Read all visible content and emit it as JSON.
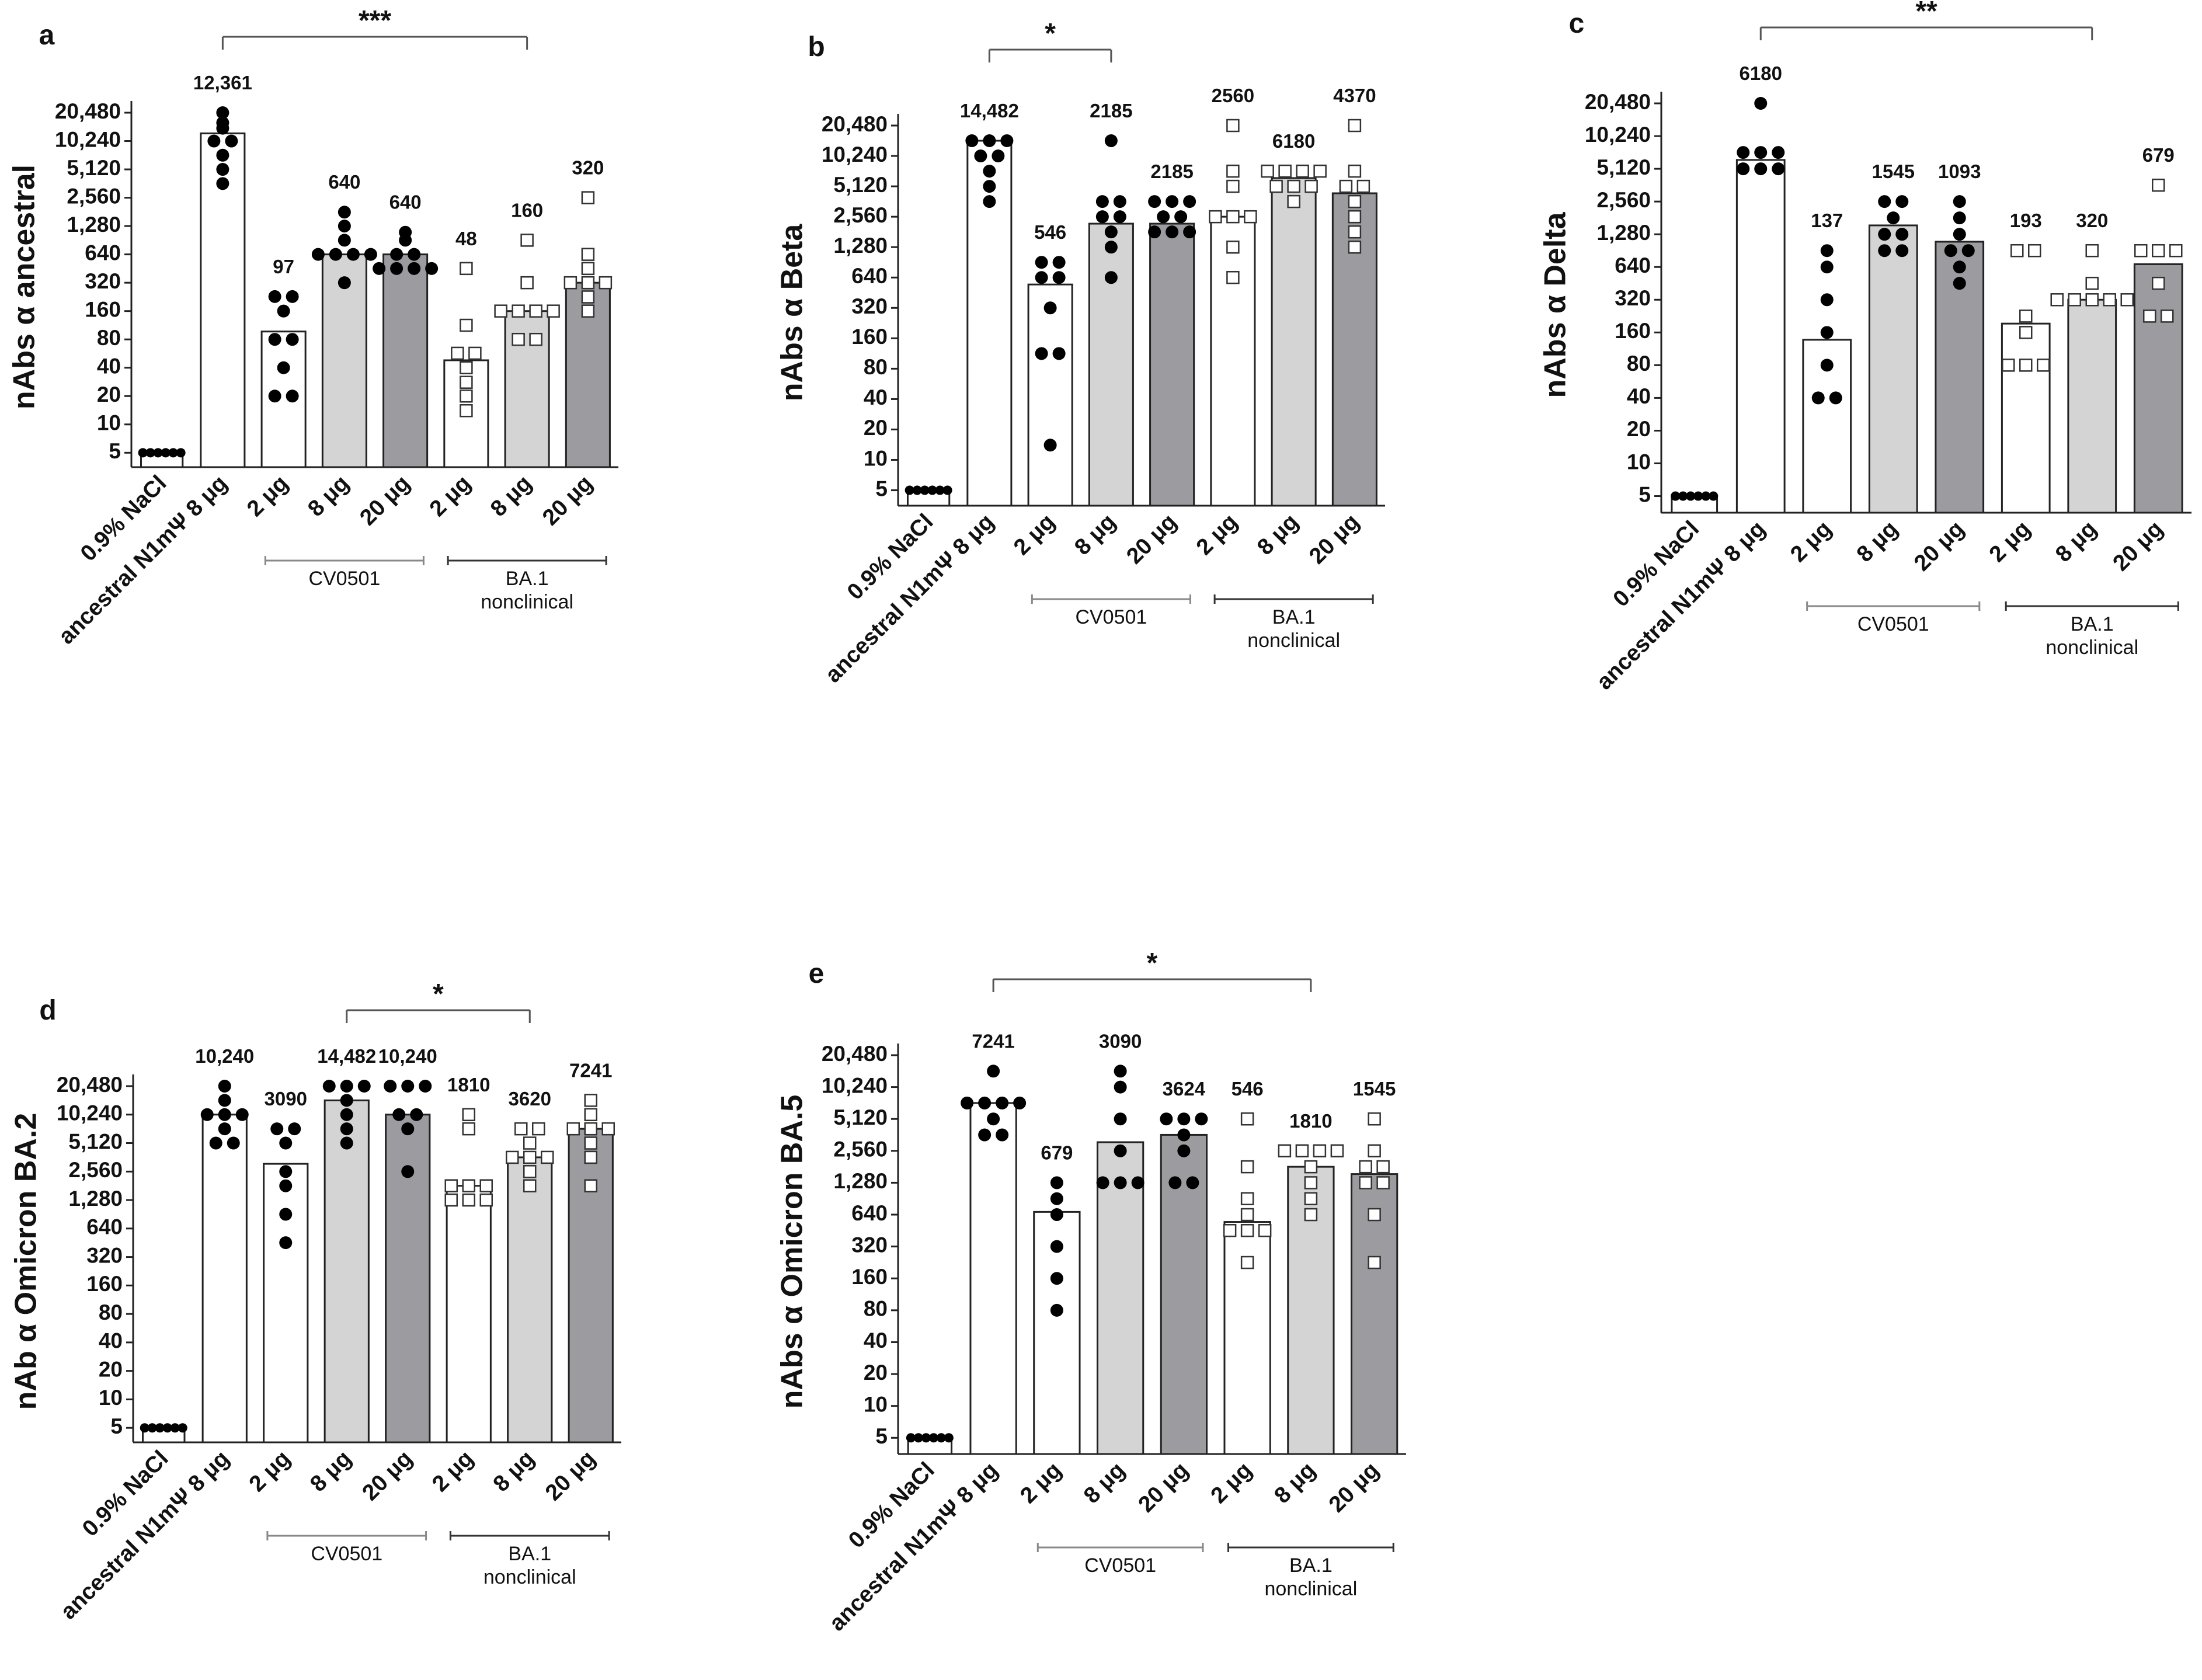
{
  "chart_data": [
    {
      "panel": "a",
      "type": "bar",
      "ylabel": "nAbs α ancestral",
      "yscale": "log2",
      "yticks": [
        "5",
        "10",
        "20",
        "40",
        "80",
        "160",
        "320",
        "640",
        "1,280",
        "2,560",
        "5,120",
        "10,240",
        "20,480"
      ],
      "categories": [
        "0.9% NaCl",
        "ancestral N1mΨ 8 μg",
        "2 μg",
        "8 μg",
        "20 μg",
        "2 μg",
        "8 μg",
        "20 μg"
      ],
      "bar_colors": [
        "#ffffff",
        "#ffffff",
        "#ffffff",
        "#d4d4d4",
        "#9b9ba0",
        "#ffffff",
        "#d4d4d4",
        "#9b9ba0"
      ],
      "values": [
        5,
        12361,
        97,
        640,
        640,
        48,
        160,
        320
      ],
      "value_labels": [
        "",
        "12,361",
        "97",
        "640",
        "640",
        "48",
        "160",
        "320"
      ],
      "group_labels": [
        {
          "text": "CV0501",
          "from": 2,
          "to": 4
        },
        {
          "text": "BA.1\nnonclinical",
          "from": 5,
          "to": 7
        }
      ],
      "significance": [
        {
          "from": 1,
          "to": 6,
          "label": "***"
        }
      ],
      "points": [
        [
          5,
          5,
          5,
          5,
          5,
          5
        ],
        [
          20480,
          16000,
          14000,
          10240,
          10240,
          5120,
          3620,
          7240
        ],
        [
          228,
          228,
          160,
          80,
          80,
          40,
          20,
          20
        ],
        [
          1800,
          1280,
          905,
          640,
          640,
          640,
          640,
          320
        ],
        [
          1100,
          905,
          640,
          640,
          453,
          453,
          453,
          453
        ],
        [
          453,
          113,
          57,
          57,
          40,
          28,
          20,
          14
        ],
        [
          905,
          320,
          160,
          160,
          160,
          160,
          80,
          80
        ],
        [
          2560,
          640,
          453,
          320,
          320,
          320,
          226,
          160
        ]
      ],
      "markers": [
        "circle",
        "circle",
        "circle",
        "circle",
        "circle",
        "square",
        "square",
        "square"
      ]
    },
    {
      "panel": "b",
      "type": "bar",
      "ylabel": "nAbs α Beta",
      "yscale": "log2",
      "yticks": [
        "5",
        "10",
        "20",
        "40",
        "80",
        "160",
        "320",
        "640",
        "1,280",
        "2,560",
        "5,120",
        "10,240",
        "20,480"
      ],
      "categories": [
        "0.9% NaCl",
        "ancestral N1mΨ 8 μg",
        "2 μg",
        "8 μg",
        "20 μg",
        "2 μg",
        "8 μg",
        "20 μg"
      ],
      "bar_colors": [
        "#ffffff",
        "#ffffff",
        "#ffffff",
        "#d4d4d4",
        "#9b9ba0",
        "#ffffff",
        "#d4d4d4",
        "#9b9ba0"
      ],
      "values": [
        5,
        14482,
        546,
        2185,
        2185,
        2560,
        6180,
        4370
      ],
      "value_labels": [
        "",
        "14,482",
        "546",
        "2185",
        "2185",
        "2560",
        "6180",
        "4370"
      ],
      "group_labels": [
        {
          "text": "CV0501",
          "from": 2,
          "to": 4
        },
        {
          "text": "BA.1\nnonclinical",
          "from": 5,
          "to": 7
        }
      ],
      "significance": [
        {
          "from": 1,
          "to": 3,
          "label": "*"
        }
      ],
      "points": [
        [
          5,
          5,
          5,
          5,
          5,
          5
        ],
        [
          14482,
          14482,
          14482,
          10240,
          10240,
          7240,
          5120,
          3620
        ],
        [
          905,
          905,
          640,
          320,
          113,
          113,
          14,
          640
        ],
        [
          14482,
          3620,
          3620,
          2560,
          2560,
          1810,
          1280,
          640
        ],
        [
          3620,
          3620,
          3620,
          2560,
          2560,
          1810,
          1810,
          1810
        ],
        [
          20480,
          7240,
          5120,
          2560,
          2560,
          2560,
          1280,
          640
        ],
        [
          7240,
          7240,
          7240,
          7240,
          5120,
          5120,
          5120,
          3620
        ],
        [
          20480,
          7240,
          5120,
          5120,
          3620,
          2560,
          1810,
          1280
        ]
      ],
      "markers": [
        "circle",
        "circle",
        "circle",
        "circle",
        "circle",
        "square",
        "square",
        "square"
      ]
    },
    {
      "panel": "c",
      "type": "bar",
      "ylabel": "nAbs α Delta",
      "yscale": "log2",
      "yticks": [
        "5",
        "10",
        "20",
        "40",
        "80",
        "160",
        "320",
        "640",
        "1,280",
        "2,560",
        "5,120",
        "10,240",
        "20,480"
      ],
      "categories": [
        "0.9% NaCl",
        "ancestral N1mΨ 8 μg",
        "2 μg",
        "8 μg",
        "20 μg",
        "2 μg",
        "8 μg",
        "20 μg"
      ],
      "bar_colors": [
        "#ffffff",
        "#ffffff",
        "#ffffff",
        "#d4d4d4",
        "#9b9ba0",
        "#ffffff",
        "#d4d4d4",
        "#9b9ba0"
      ],
      "values": [
        5,
        6180,
        137,
        1545,
        1093,
        193,
        320,
        679
      ],
      "value_labels": [
        "",
        "6180",
        "137",
        "1545",
        "1093",
        "193",
        "320",
        "679"
      ],
      "group_labels": [
        {
          "text": "CV0501",
          "from": 2,
          "to": 4
        },
        {
          "text": "BA.1\nnonclinical",
          "from": 5,
          "to": 7
        }
      ],
      "significance": [
        {
          "from": 1,
          "to": 6,
          "label": "**"
        }
      ],
      "points": [
        [
          5,
          5,
          5,
          5,
          5,
          5
        ],
        [
          20480,
          7240,
          7240,
          7240,
          5120,
          5120,
          5120
        ],
        [
          905,
          640,
          320,
          160,
          80,
          40,
          40
        ],
        [
          2560,
          2560,
          1810,
          1280,
          1280,
          905,
          905
        ],
        [
          2560,
          1810,
          1280,
          905,
          905,
          640,
          453
        ],
        [
          905,
          905,
          226,
          160,
          80,
          80,
          80
        ],
        [
          905,
          453,
          320,
          320,
          320,
          320,
          320
        ],
        [
          3620,
          905,
          905,
          905,
          453,
          226,
          226
        ]
      ],
      "markers": [
        "circle",
        "circle",
        "circle",
        "circle",
        "circle",
        "square",
        "square",
        "square"
      ]
    },
    {
      "panel": "d",
      "type": "bar",
      "ylabel": "nAb α Omicron BA.2",
      "yscale": "log2",
      "yticks": [
        "5",
        "10",
        "20",
        "40",
        "80",
        "160",
        "320",
        "640",
        "1,280",
        "2,560",
        "5,120",
        "10,240",
        "20,480"
      ],
      "categories": [
        "0.9% NaCl",
        "ancestral N1mΨ 8 μg",
        "2 μg",
        "8 μg",
        "20 μg",
        "2 μg",
        "8 μg",
        "20 μg"
      ],
      "bar_colors": [
        "#ffffff",
        "#ffffff",
        "#ffffff",
        "#d4d4d4",
        "#9b9ba0",
        "#ffffff",
        "#d4d4d4",
        "#9b9ba0"
      ],
      "values": [
        5,
        10240,
        3090,
        14482,
        10240,
        1810,
        3620,
        7241
      ],
      "value_labels": [
        "",
        "10,240",
        "3090",
        "14,482",
        "10,240",
        "1810",
        "3620",
        "7241"
      ],
      "group_labels": [
        {
          "text": "CV0501",
          "from": 2,
          "to": 4
        },
        {
          "text": "BA.1\nnonclinical",
          "from": 5,
          "to": 7
        }
      ],
      "significance": [
        {
          "from": 3,
          "to": 6,
          "label": "*"
        }
      ],
      "points": [
        [
          5,
          5,
          5,
          5,
          5,
          5
        ],
        [
          20480,
          14482,
          10240,
          10240,
          10240,
          7240,
          5120,
          5120
        ],
        [
          7240,
          7240,
          5120,
          2560,
          1810,
          905,
          453
        ],
        [
          20480,
          20480,
          20480,
          14482,
          10240,
          7240,
          5120
        ],
        [
          20480,
          20480,
          20480,
          10240,
          10240,
          7240,
          2560
        ],
        [
          10240,
          7240,
          1810,
          1810,
          1810,
          1280,
          1280,
          1280
        ],
        [
          7240,
          7240,
          5120,
          3620,
          3620,
          3620,
          2560,
          1810
        ],
        [
          14482,
          10240,
          7240,
          7240,
          7240,
          5120,
          3620,
          1810
        ]
      ],
      "markers": [
        "circle",
        "circle",
        "circle",
        "circle",
        "circle",
        "square",
        "square",
        "square"
      ]
    },
    {
      "panel": "e",
      "type": "bar",
      "ylabel": "nAbs α Omicron BA.5",
      "yscale": "log2",
      "yticks": [
        "5",
        "10",
        "20",
        "40",
        "80",
        "160",
        "320",
        "640",
        "1,280",
        "2,560",
        "5,120",
        "10,240",
        "20,480"
      ],
      "categories": [
        "0.9% NaCl",
        "ancestral N1mΨ 8 μg",
        "2 μg",
        "8 μg",
        "20 μg",
        "2 μg",
        "8 μg",
        "20 μg"
      ],
      "bar_colors": [
        "#ffffff",
        "#ffffff",
        "#ffffff",
        "#d4d4d4",
        "#9b9ba0",
        "#ffffff",
        "#d4d4d4",
        "#9b9ba0"
      ],
      "values": [
        5,
        7241,
        679,
        3090,
        3624,
        546,
        1810,
        1545
      ],
      "value_labels": [
        "",
        "7241",
        "679",
        "3090",
        "3624",
        "546",
        "1810",
        "1545"
      ],
      "group_labels": [
        {
          "text": "CV0501",
          "from": 2,
          "to": 4
        },
        {
          "text": "BA.1\nnonclinical",
          "from": 5,
          "to": 7
        }
      ],
      "significance": [
        {
          "from": 1,
          "to": 6,
          "label": "*"
        }
      ],
      "points": [
        [
          5,
          5,
          5,
          5,
          5,
          5
        ],
        [
          14482,
          7240,
          7240,
          7240,
          7240,
          5120,
          3620,
          3620
        ],
        [
          1280,
          905,
          640,
          320,
          160,
          80
        ],
        [
          14482,
          10240,
          5120,
          2560,
          1280,
          1280,
          1280
        ],
        [
          5120,
          5120,
          5120,
          3620,
          2560,
          1280,
          1280
        ],
        [
          5120,
          1810,
          905,
          640,
          453,
          453,
          453,
          226
        ],
        [
          2560,
          2560,
          2560,
          2560,
          1810,
          1280,
          905,
          640
        ],
        [
          5120,
          2560,
          1810,
          1810,
          1280,
          1280,
          640,
          226
        ]
      ],
      "markers": [
        "circle",
        "circle",
        "circle",
        "circle",
        "circle",
        "square",
        "square",
        "square"
      ]
    }
  ]
}
